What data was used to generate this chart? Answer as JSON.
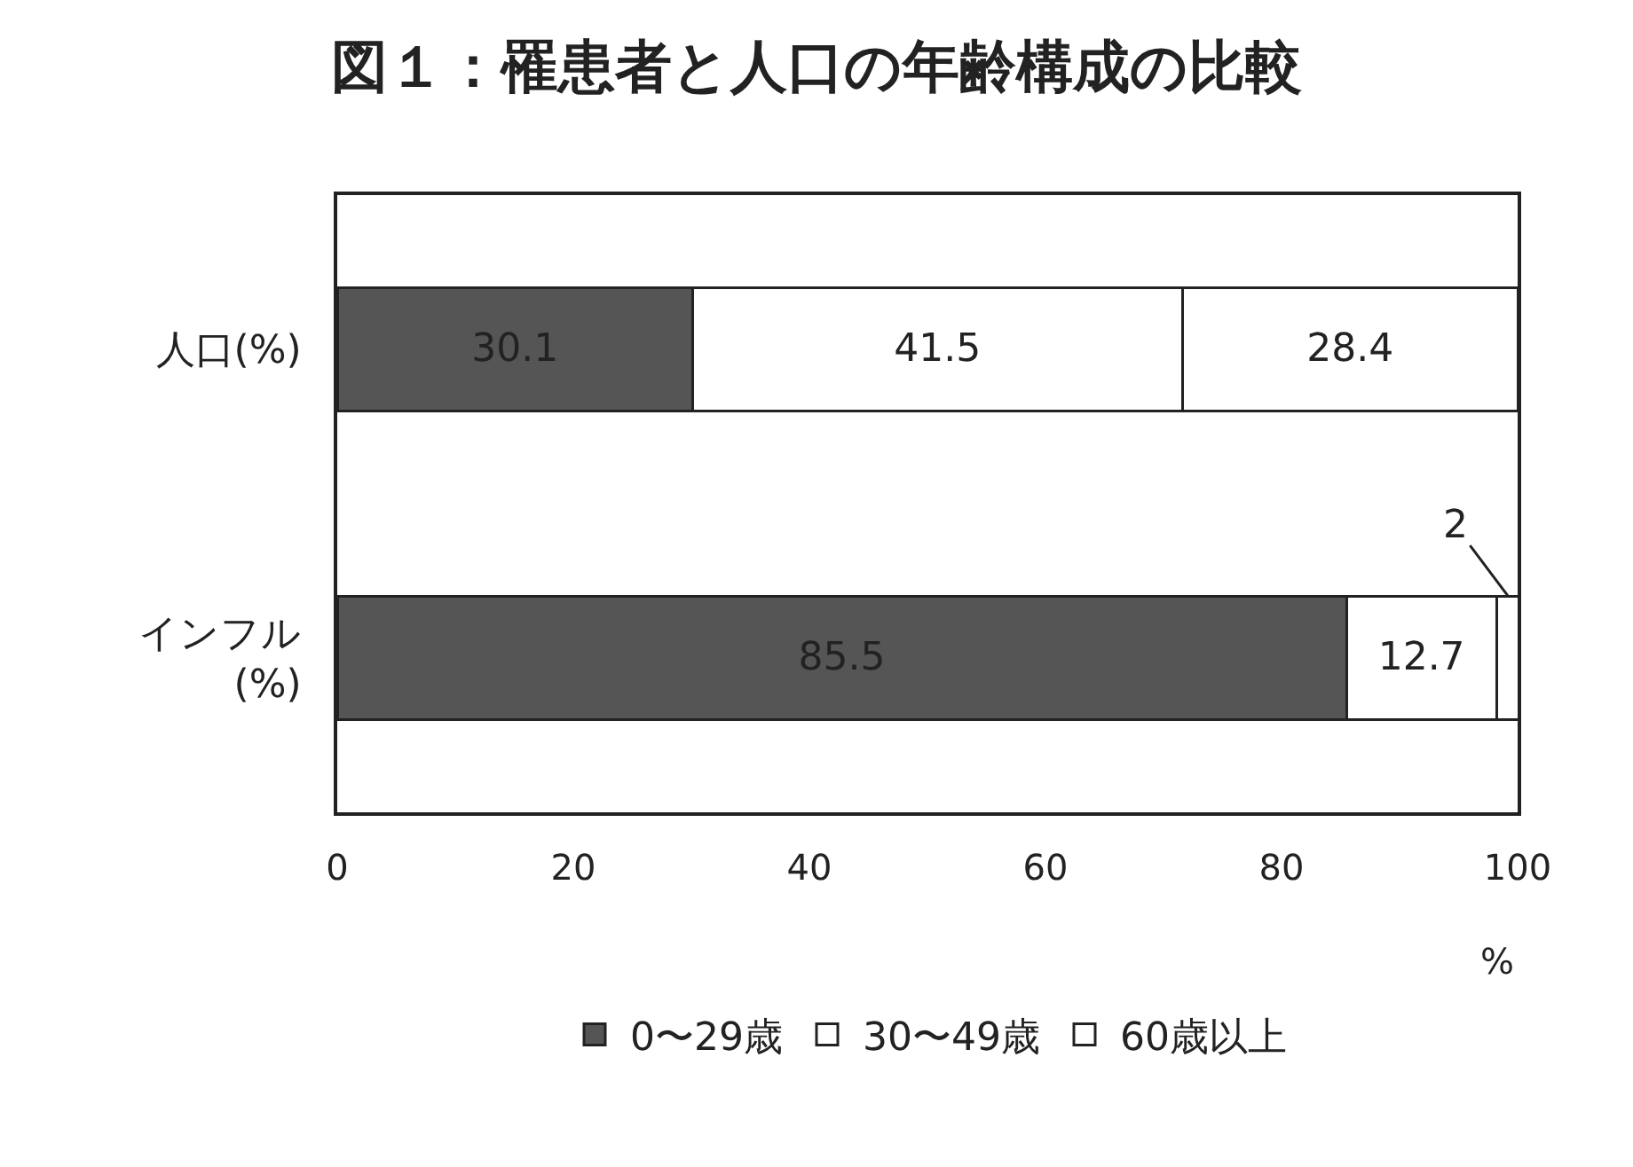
{
  "chart_data": {
    "type": "bar",
    "orientation": "horizontal",
    "stacked": true,
    "title": "図１：罹患者と人口の年齢構成の比較",
    "xlabel": "%",
    "categories": [
      "人口(%)",
      "インフル\n(%)"
    ],
    "series": [
      {
        "name": "0〜29歳",
        "color": "#555555",
        "values": [
          30.1,
          85.5
        ]
      },
      {
        "name": "30〜49歳",
        "color": "#ffffff",
        "values": [
          41.5,
          12.7
        ]
      },
      {
        "name": "60歳以上",
        "color": "#ffffff",
        "values": [
          28.4,
          2
        ]
      }
    ],
    "xlim": [
      0,
      100
    ],
    "xticks": [
      0,
      20,
      40,
      60,
      80,
      100
    ],
    "grid": false,
    "legend": "bottom",
    "data_labels": true
  }
}
